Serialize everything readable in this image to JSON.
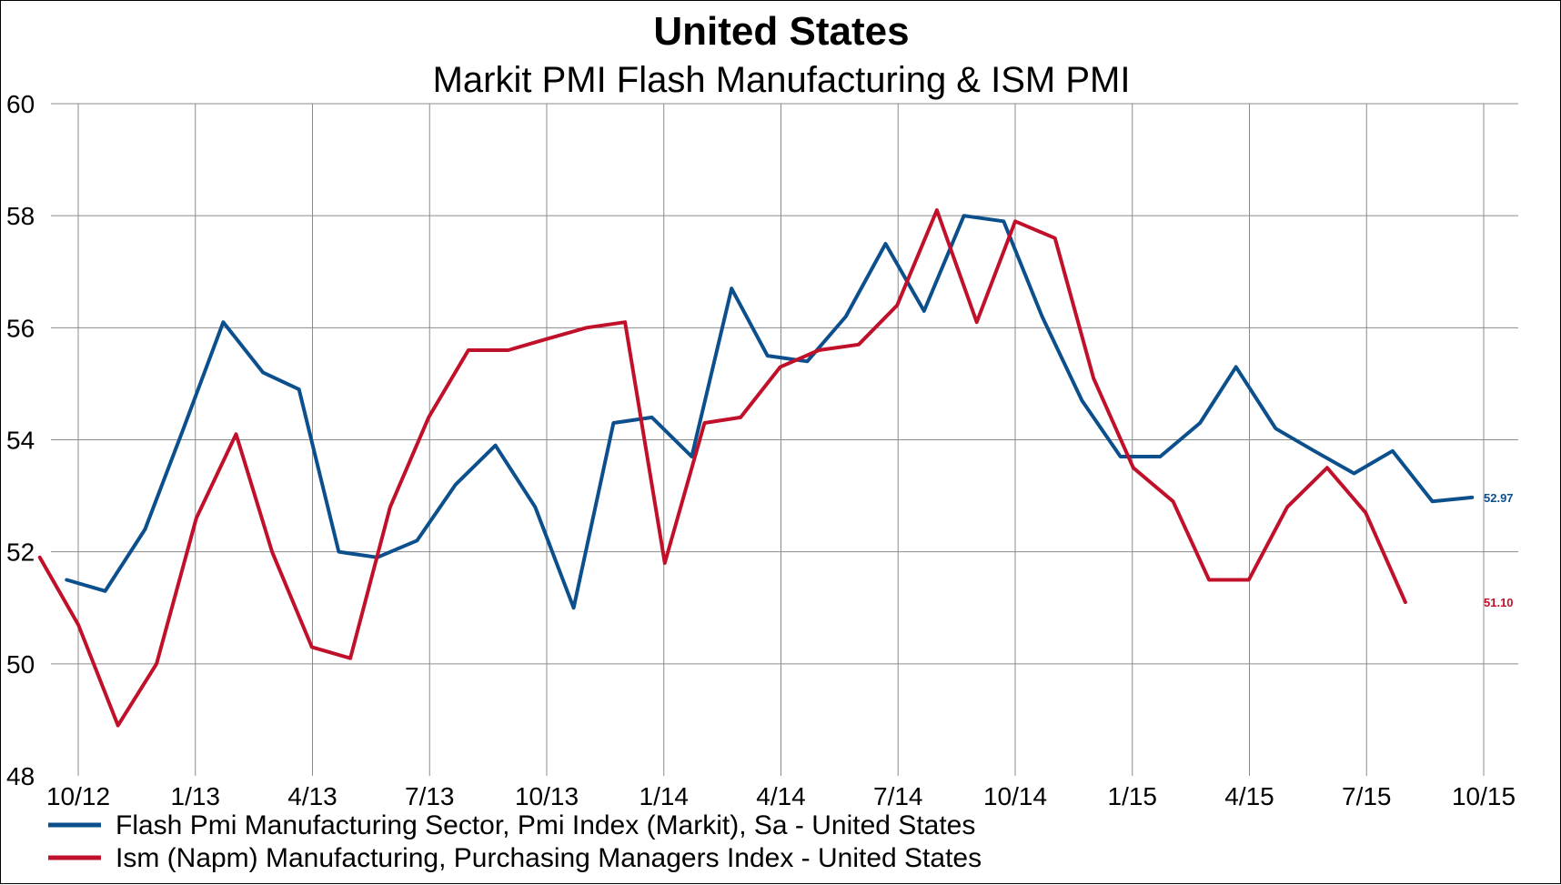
{
  "chart_data": {
    "type": "line",
    "title": "United States",
    "subtitle": "Markit PMI Flash Manufacturing & ISM PMI",
    "xlabel": "",
    "ylabel": "",
    "ylim": [
      48,
      60
    ],
    "yticks": [
      "48",
      "50",
      "52",
      "54",
      "56",
      "58",
      "60"
    ],
    "xticks": [
      "10/12",
      "1/13",
      "4/13",
      "7/13",
      "10/13",
      "1/14",
      "4/14",
      "7/14",
      "10/14",
      "1/15",
      "4/15",
      "7/15",
      "10/15"
    ],
    "x_range": [
      "2012-10",
      "2015-10"
    ],
    "grid": true,
    "legend_position": "bottom-left",
    "series": [
      {
        "name": "Flash Pmi Manufacturing Sector, Pmi Index (Markit), Sa - United States",
        "color": "#0b4f8c",
        "end_label": "52.97",
        "points": [
          [
            "2012-09-22",
            51.5
          ],
          [
            "2012-10-22",
            51.3
          ],
          [
            "2012-11-22",
            52.4
          ],
          [
            "2012-12-22",
            54.2
          ],
          [
            "2013-01-22",
            56.1
          ],
          [
            "2013-02-22",
            55.2
          ],
          [
            "2013-03-22",
            54.9
          ],
          [
            "2013-04-22",
            52.0
          ],
          [
            "2013-05-22",
            51.9
          ],
          [
            "2013-06-22",
            52.2
          ],
          [
            "2013-07-22",
            53.2
          ],
          [
            "2013-08-22",
            53.9
          ],
          [
            "2013-09-22",
            52.8
          ],
          [
            "2013-10-22",
            51.0
          ],
          [
            "2013-11-22",
            54.3
          ],
          [
            "2013-12-22",
            54.4
          ],
          [
            "2014-01-22",
            53.7
          ],
          [
            "2014-02-22",
            56.7
          ],
          [
            "2014-03-22",
            55.5
          ],
          [
            "2014-04-22",
            55.4
          ],
          [
            "2014-05-22",
            56.2
          ],
          [
            "2014-06-22",
            57.5
          ],
          [
            "2014-07-22",
            56.3
          ],
          [
            "2014-08-22",
            58.0
          ],
          [
            "2014-09-22",
            57.9
          ],
          [
            "2014-10-22",
            56.2
          ],
          [
            "2014-11-22",
            54.7
          ],
          [
            "2014-12-22",
            53.7
          ],
          [
            "2015-01-22",
            53.7
          ],
          [
            "2015-02-22",
            54.3
          ],
          [
            "2015-03-22",
            55.3
          ],
          [
            "2015-04-22",
            54.2
          ],
          [
            "2015-05-22",
            53.8
          ],
          [
            "2015-06-22",
            53.4
          ],
          [
            "2015-07-22",
            53.8
          ],
          [
            "2015-08-22",
            52.9
          ],
          [
            "2015-09-22",
            52.97
          ]
        ]
      },
      {
        "name": "Ism (Napm) Manufacturing, Purchasing Managers Index - United States",
        "color": "#c0102a",
        "end_label": "51.10",
        "points": [
          [
            "2012-09-01",
            51.9
          ],
          [
            "2012-10-01",
            50.7
          ],
          [
            "2012-11-01",
            48.9
          ],
          [
            "2012-12-01",
            50.0
          ],
          [
            "2013-01-01",
            52.6
          ],
          [
            "2013-02-01",
            54.1
          ],
          [
            "2013-03-01",
            52.0
          ],
          [
            "2013-04-01",
            50.3
          ],
          [
            "2013-05-01",
            50.1
          ],
          [
            "2013-06-01",
            52.8
          ],
          [
            "2013-07-01",
            54.4
          ],
          [
            "2013-08-01",
            55.6
          ],
          [
            "2013-09-01",
            55.6
          ],
          [
            "2013-10-01",
            55.8
          ],
          [
            "2013-11-01",
            56.0
          ],
          [
            "2013-12-01",
            56.1
          ],
          [
            "2014-01-01",
            51.8
          ],
          [
            "2014-02-01",
            54.3
          ],
          [
            "2014-03-01",
            54.4
          ],
          [
            "2014-04-01",
            55.3
          ],
          [
            "2014-05-01",
            55.6
          ],
          [
            "2014-06-01",
            55.7
          ],
          [
            "2014-07-01",
            56.4
          ],
          [
            "2014-08-01",
            58.1
          ],
          [
            "2014-09-01",
            56.1
          ],
          [
            "2014-10-01",
            57.9
          ],
          [
            "2014-11-01",
            57.6
          ],
          [
            "2014-12-01",
            55.1
          ],
          [
            "2015-01-01",
            53.5
          ],
          [
            "2015-02-01",
            52.9
          ],
          [
            "2015-03-01",
            51.5
          ],
          [
            "2015-04-01",
            51.5
          ],
          [
            "2015-05-01",
            52.8
          ],
          [
            "2015-06-01",
            53.5
          ],
          [
            "2015-07-01",
            52.7
          ],
          [
            "2015-08-01",
            51.1
          ]
        ]
      }
    ]
  }
}
